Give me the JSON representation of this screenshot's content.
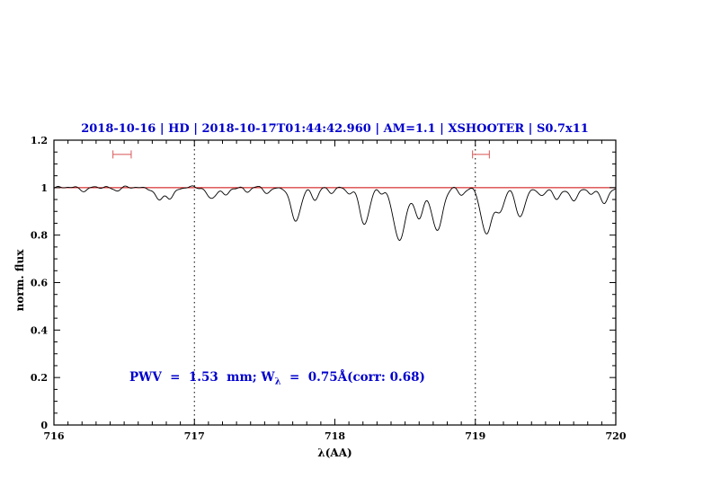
{
  "chart_data": {
    "type": "line",
    "title": "2018-10-16 | HD | 2018-10-17T01:44:42.960 | AM=1.1 | XSHOOTER | S0.7x11",
    "xlabel": "λ(AA)",
    "ylabel": "norm. flux",
    "xlim": [
      716,
      720
    ],
    "ylim": [
      0,
      1.2
    ],
    "x_ticks": [
      716,
      717,
      718,
      719,
      720
    ],
    "x_tick_labels": [
      "716",
      "717",
      "718",
      "719",
      "720"
    ],
    "x_minor_step": 0.1,
    "y_ticks": [
      0,
      0.2,
      0.4,
      0.6,
      0.8,
      1,
      1.2
    ],
    "y_tick_labels": [
      "0",
      "0.2",
      "0.4",
      "0.6",
      "0.8",
      "1",
      "1.2"
    ],
    "y_minor_step": 0.05,
    "grid": false,
    "dotted_vlines": [
      717,
      719
    ],
    "continuum": {
      "y": 1.0,
      "color": "#cc0000"
    },
    "spectrum_color": "#000000",
    "title_color": "#0000cc",
    "annotation_color": "#0000cc",
    "annotation_parts": {
      "prefix": "PWV  =  1.53  mm; W",
      "sub": "λ",
      "suffix": "  =  0.75Å(corr: 0.68)"
    },
    "range_markers": [
      {
        "x_start": 716.42,
        "x_end": 716.55,
        "y": 1.14,
        "color": "#dd6666"
      },
      {
        "x_start": 718.98,
        "x_end": 719.1,
        "y": 1.14,
        "color": "#dd6666"
      }
    ],
    "absorption_lines": [
      {
        "center": 716.22,
        "depth": 0.012,
        "width": 0.02
      },
      {
        "center": 716.45,
        "depth": 0.01,
        "width": 0.02
      },
      {
        "center": 716.75,
        "depth": 0.055,
        "width": 0.03
      },
      {
        "center": 716.83,
        "depth": 0.045,
        "width": 0.025
      },
      {
        "center": 717.12,
        "depth": 0.045,
        "width": 0.03
      },
      {
        "center": 717.22,
        "depth": 0.035,
        "width": 0.025
      },
      {
        "center": 717.38,
        "depth": 0.015,
        "width": 0.02
      },
      {
        "center": 717.52,
        "depth": 0.02,
        "width": 0.025
      },
      {
        "center": 717.72,
        "depth": 0.14,
        "width": 0.035
      },
      {
        "center": 717.86,
        "depth": 0.05,
        "width": 0.025
      },
      {
        "center": 717.97,
        "depth": 0.02,
        "width": 0.02
      },
      {
        "center": 718.1,
        "depth": 0.025,
        "width": 0.02
      },
      {
        "center": 718.21,
        "depth": 0.15,
        "width": 0.035
      },
      {
        "center": 718.33,
        "depth": 0.02,
        "width": 0.02
      },
      {
        "center": 718.46,
        "depth": 0.215,
        "width": 0.045
      },
      {
        "center": 718.6,
        "depth": 0.13,
        "width": 0.032
      },
      {
        "center": 718.73,
        "depth": 0.18,
        "width": 0.038
      },
      {
        "center": 718.9,
        "depth": 0.03,
        "width": 0.022
      },
      {
        "center": 719.08,
        "depth": 0.195,
        "width": 0.04
      },
      {
        "center": 719.18,
        "depth": 0.09,
        "width": 0.03
      },
      {
        "center": 719.32,
        "depth": 0.125,
        "width": 0.032
      },
      {
        "center": 719.47,
        "depth": 0.04,
        "width": 0.025
      },
      {
        "center": 719.58,
        "depth": 0.05,
        "width": 0.025
      },
      {
        "center": 719.7,
        "depth": 0.06,
        "width": 0.028
      },
      {
        "center": 719.82,
        "depth": 0.03,
        "width": 0.02
      },
      {
        "center": 719.92,
        "depth": 0.07,
        "width": 0.028
      }
    ]
  }
}
